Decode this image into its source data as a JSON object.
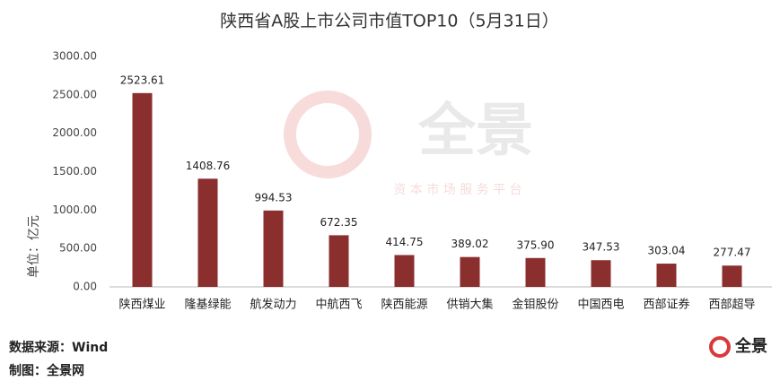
{
  "chart_data": {
    "type": "bar",
    "title": "陕西省A股上市公司市值TOP10（5月31日）",
    "y_label": "单位：亿元",
    "categories": [
      "陕西煤业",
      "隆基绿能",
      "航发动力",
      "中航西飞",
      "陕西能源",
      "供销大集",
      "金钼股份",
      "中国西电",
      "西部证券",
      "西部超导"
    ],
    "values": [
      2523.61,
      1408.76,
      994.53,
      672.35,
      414.75,
      389.02,
      375.9,
      347.53,
      303.04,
      277.47
    ],
    "value_labels": [
      "2523.61",
      "1408.76",
      "994.53",
      "672.35",
      "414.75",
      "389.02",
      "375.90",
      "347.53",
      "303.04",
      "277.47"
    ],
    "color": "#8b2e2e",
    "ylim": [
      0,
      3000
    ],
    "yticks": [
      {
        "value": 0,
        "label": "0.00"
      },
      {
        "value": 500,
        "label": "500.00"
      },
      {
        "value": 1000,
        "label": "1000.00"
      },
      {
        "value": 1500,
        "label": "1500.00"
      },
      {
        "value": 2000,
        "label": "2000.00"
      },
      {
        "value": 2500,
        "label": "2500.00"
      },
      {
        "value": 3000,
        "label": "3000.00"
      }
    ],
    "grid": false,
    "source": "数据来源：Wind",
    "credit": "制图：全景网",
    "watermark": "全景",
    "watermark_sub": "资 本 市 场 服 务 平 台",
    "logo": "全景"
  }
}
